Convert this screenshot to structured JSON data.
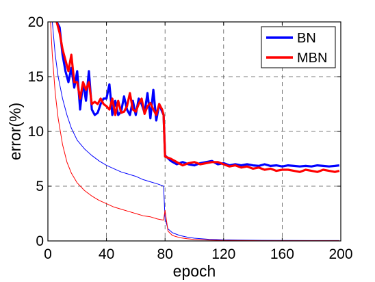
{
  "chart_data": {
    "type": "line",
    "xlabel": "epoch",
    "ylabel": "error(%)",
    "xlim": [
      0,
      200
    ],
    "ylim": [
      0,
      20
    ],
    "xticks": [
      0,
      40,
      80,
      120,
      160,
      200
    ],
    "yticks": [
      0,
      5,
      10,
      15,
      20
    ],
    "grid": "dashed",
    "legend_position": "top-right",
    "legend": [
      {
        "label": "BN",
        "color": "#0000ff"
      },
      {
        "label": "MBN",
        "color": "#ff0000"
      }
    ],
    "series": [
      {
        "name": "BN",
        "split": "test",
        "color": "#0000ff",
        "weight": "thick",
        "x": [
          1,
          4,
          6,
          8,
          10,
          12,
          14,
          16,
          18,
          20,
          22,
          24,
          26,
          28,
          30,
          32,
          34,
          36,
          38,
          40,
          42,
          44,
          46,
          48,
          50,
          52,
          54,
          56,
          58,
          60,
          62,
          64,
          66,
          68,
          70,
          72,
          74,
          76,
          78,
          79,
          80,
          84,
          88,
          92,
          96,
          100,
          104,
          108,
          112,
          116,
          120,
          124,
          128,
          132,
          136,
          140,
          144,
          148,
          152,
          156,
          160,
          164,
          168,
          172,
          176,
          180,
          184,
          188,
          192,
          196,
          199
        ],
        "y": [
          30,
          22,
          20,
          19.5,
          17,
          15.5,
          14.5,
          15.8,
          14,
          15.5,
          12,
          14.5,
          12.8,
          15.5,
          12,
          11.5,
          11.7,
          12.5,
          13,
          13,
          14.3,
          11.5,
          12.8,
          11.5,
          11.8,
          13.2,
          12,
          11.5,
          12.8,
          11.5,
          13,
          12.5,
          11.7,
          13.5,
          11.2,
          13.8,
          11,
          12.5,
          11.8,
          11.5,
          7.8,
          7.3,
          7,
          7.2,
          7,
          6.9,
          7.1,
          7.2,
          7.3,
          7,
          7.1,
          6.9,
          7,
          6.9,
          7,
          6.9,
          6.85,
          7,
          6.85,
          6.9,
          6.8,
          6.9,
          6.85,
          6.8,
          6.85,
          6.8,
          6.9,
          6.85,
          6.8,
          6.85,
          6.9
        ]
      },
      {
        "name": "MBN",
        "split": "test",
        "color": "#ff0000",
        "weight": "thick",
        "x": [
          1,
          4,
          6,
          8,
          10,
          12,
          14,
          16,
          18,
          20,
          22,
          24,
          26,
          28,
          30,
          32,
          34,
          36,
          38,
          40,
          42,
          44,
          46,
          48,
          50,
          52,
          54,
          56,
          58,
          60,
          62,
          64,
          66,
          68,
          70,
          72,
          74,
          76,
          78,
          79,
          80,
          84,
          88,
          92,
          96,
          100,
          104,
          108,
          112,
          116,
          120,
          124,
          128,
          132,
          136,
          140,
          144,
          148,
          152,
          156,
          160,
          164,
          168,
          172,
          176,
          180,
          184,
          188,
          192,
          196,
          199
        ],
        "y": [
          30,
          22,
          20,
          19,
          17.5,
          16.5,
          15.5,
          17,
          14.5,
          14.5,
          13,
          14.5,
          13.8,
          14.5,
          12.5,
          12.7,
          12.5,
          13,
          12.5,
          12.3,
          12,
          13,
          11.5,
          12.8,
          11.7,
          11.8,
          12.3,
          13.5,
          12,
          11.8,
          12.5,
          13,
          11.6,
          12.3,
          12.6,
          12,
          11.5,
          12.5,
          12,
          11.5,
          7.7,
          7.5,
          7.2,
          6.9,
          7.1,
          7.2,
          7,
          7.1,
          7.2,
          7.2,
          7,
          6.8,
          6.9,
          6.7,
          6.8,
          6.6,
          6.7,
          6.5,
          6.6,
          6.4,
          6.5,
          6.5,
          6.4,
          6.3,
          6.5,
          6.4,
          6.3,
          6.5,
          6.4,
          6.3,
          6.4
        ]
      },
      {
        "name": "BN",
        "split": "train",
        "color": "#0000ff",
        "weight": "thin",
        "x": [
          1,
          3,
          5,
          7,
          10,
          13,
          16,
          20,
          25,
          30,
          35,
          40,
          45,
          50,
          55,
          60,
          65,
          70,
          75,
          79,
          80,
          82,
          85,
          90,
          95,
          100,
          110,
          120,
          130,
          140,
          160,
          180,
          199
        ],
        "y": [
          24,
          20,
          17,
          15,
          13,
          11.5,
          10.3,
          9.2,
          8.4,
          7.8,
          7.3,
          6.9,
          6.6,
          6.3,
          6.1,
          5.9,
          5.6,
          5.4,
          5.2,
          5.0,
          2.0,
          1.1,
          0.75,
          0.5,
          0.35,
          0.25,
          0.15,
          0.1,
          0.08,
          0.06,
          0.05,
          0.04,
          0.04
        ]
      },
      {
        "name": "MBN",
        "split": "train",
        "color": "#ff0000",
        "weight": "thin",
        "x": [
          1,
          3,
          5,
          7,
          10,
          13,
          16,
          20,
          25,
          30,
          35,
          40,
          45,
          50,
          55,
          60,
          65,
          70,
          75,
          79,
          80,
          82,
          85,
          90,
          95,
          100,
          110,
          120,
          130,
          140,
          160,
          180,
          199
        ],
        "y": [
          22,
          17,
          13.5,
          11.2,
          8.8,
          7.2,
          6.2,
          5.3,
          4.6,
          4.1,
          3.7,
          3.4,
          3.1,
          2.9,
          2.7,
          2.5,
          2.3,
          2.2,
          2.0,
          1.9,
          2.8,
          0.9,
          0.5,
          0.3,
          0.2,
          0.13,
          0.08,
          0.05,
          0.04,
          0.03,
          0.02,
          0.02,
          0.02
        ]
      }
    ]
  }
}
